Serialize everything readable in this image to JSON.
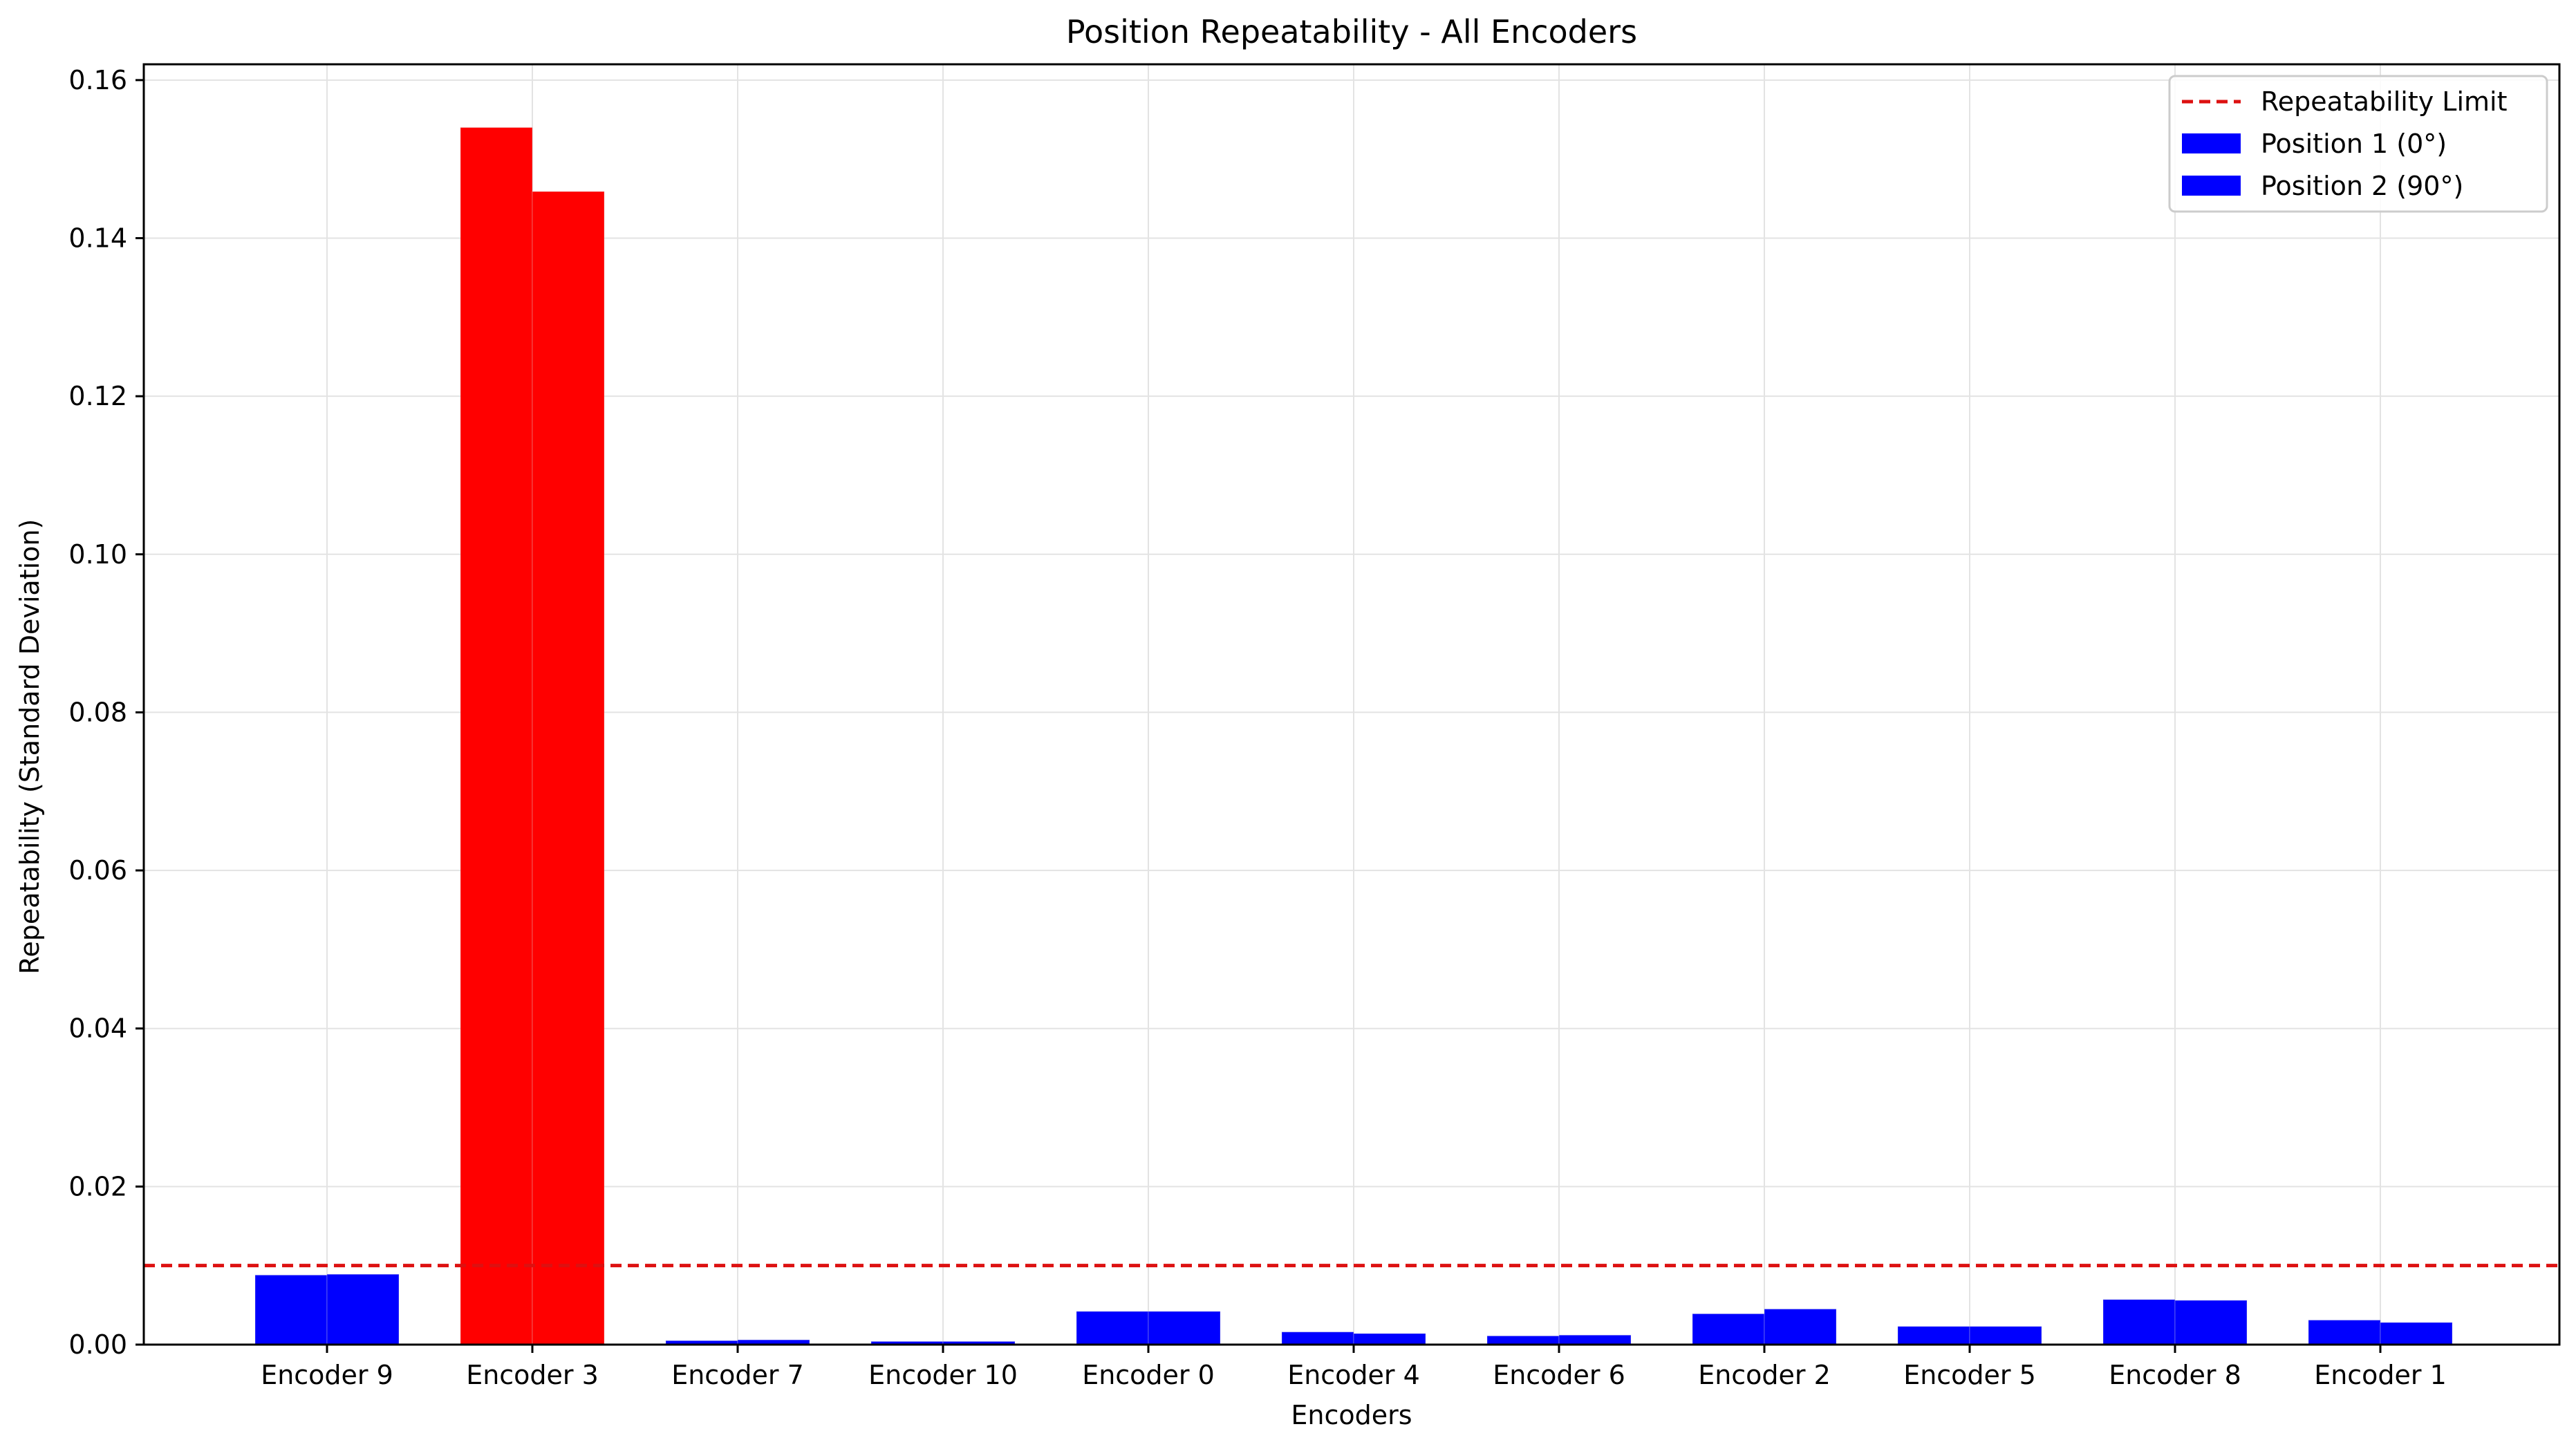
{
  "chart_data": {
    "type": "bar",
    "title": "Position Repeatability - All Encoders",
    "xlabel": "Encoders",
    "ylabel": "Repeatability (Standard Deviation)",
    "ylim": [
      0,
      0.162
    ],
    "yticks": [
      "0.00",
      "0.02",
      "0.04",
      "0.06",
      "0.08",
      "0.10",
      "0.12",
      "0.14",
      "0.16"
    ],
    "grid": true,
    "legend_position": "top-right",
    "categories": [
      "Encoder 9",
      "Encoder 3",
      "Encoder 7",
      "Encoder 10",
      "Encoder 0",
      "Encoder 4",
      "Encoder 6",
      "Encoder 2",
      "Encoder 5",
      "Encoder 8",
      "Encoder 1"
    ],
    "series": [
      {
        "name": "Position 1 (0°)",
        "values": [
          0.0088,
          0.154,
          0.0005,
          0.0004,
          0.0042,
          0.0016,
          0.0011,
          0.0039,
          0.0023,
          0.0057,
          0.0031
        ]
      },
      {
        "name": "Position 2 (90°)",
        "values": [
          0.0089,
          0.1459,
          0.0006,
          0.0004,
          0.0042,
          0.0014,
          0.0012,
          0.0045,
          0.0023,
          0.0056,
          0.0028
        ]
      }
    ],
    "reference_line": {
      "name": "Repeatability Limit",
      "value": 0.01,
      "style": "dashed",
      "color": "#dd1111"
    },
    "colors": {
      "within_limit": "#0000ff",
      "exceeds_limit": "#ff0000"
    }
  }
}
